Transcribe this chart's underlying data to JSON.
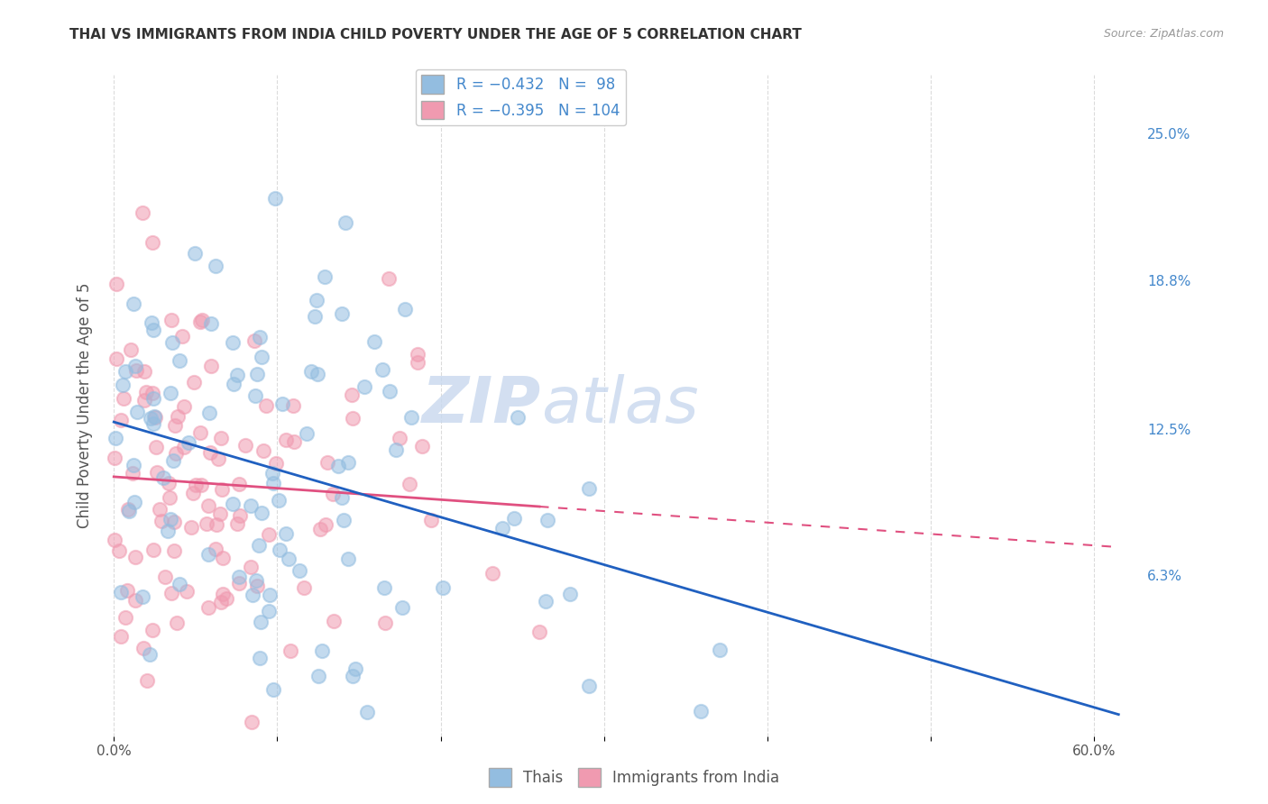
{
  "title": "THAI VS IMMIGRANTS FROM INDIA CHILD POVERTY UNDER THE AGE OF 5 CORRELATION CHART",
  "source": "Source: ZipAtlas.com",
  "ylabel": "Child Poverty Under the Age of 5",
  "x_tick_positions": [
    0.0,
    0.1,
    0.2,
    0.3,
    0.4,
    0.5,
    0.6
  ],
  "x_tick_labels": [
    "0.0%",
    "",
    "",
    "",
    "",
    "",
    "60.0%"
  ],
  "y_tick_labels_right": [
    "25.0%",
    "18.8%",
    "12.5%",
    "6.3%"
  ],
  "y_tick_values_right": [
    0.25,
    0.188,
    0.125,
    0.063
  ],
  "xlim": [
    -0.005,
    0.63
  ],
  "ylim": [
    -0.005,
    0.275
  ],
  "color_thai": "#93bde0",
  "color_india": "#f09ab0",
  "line_color_thai": "#2060c0",
  "line_color_india": "#e05080",
  "thai_N": 98,
  "india_N": 104,
  "thai_seed": 12,
  "india_seed": 77,
  "background_color": "#ffffff",
  "grid_color": "#cccccc",
  "title_color": "#333333",
  "watermark_text": "ZIPatlas",
  "watermark_color": "#c8d8ee",
  "watermark_fontsize": 52,
  "right_label_color": "#4488cc"
}
